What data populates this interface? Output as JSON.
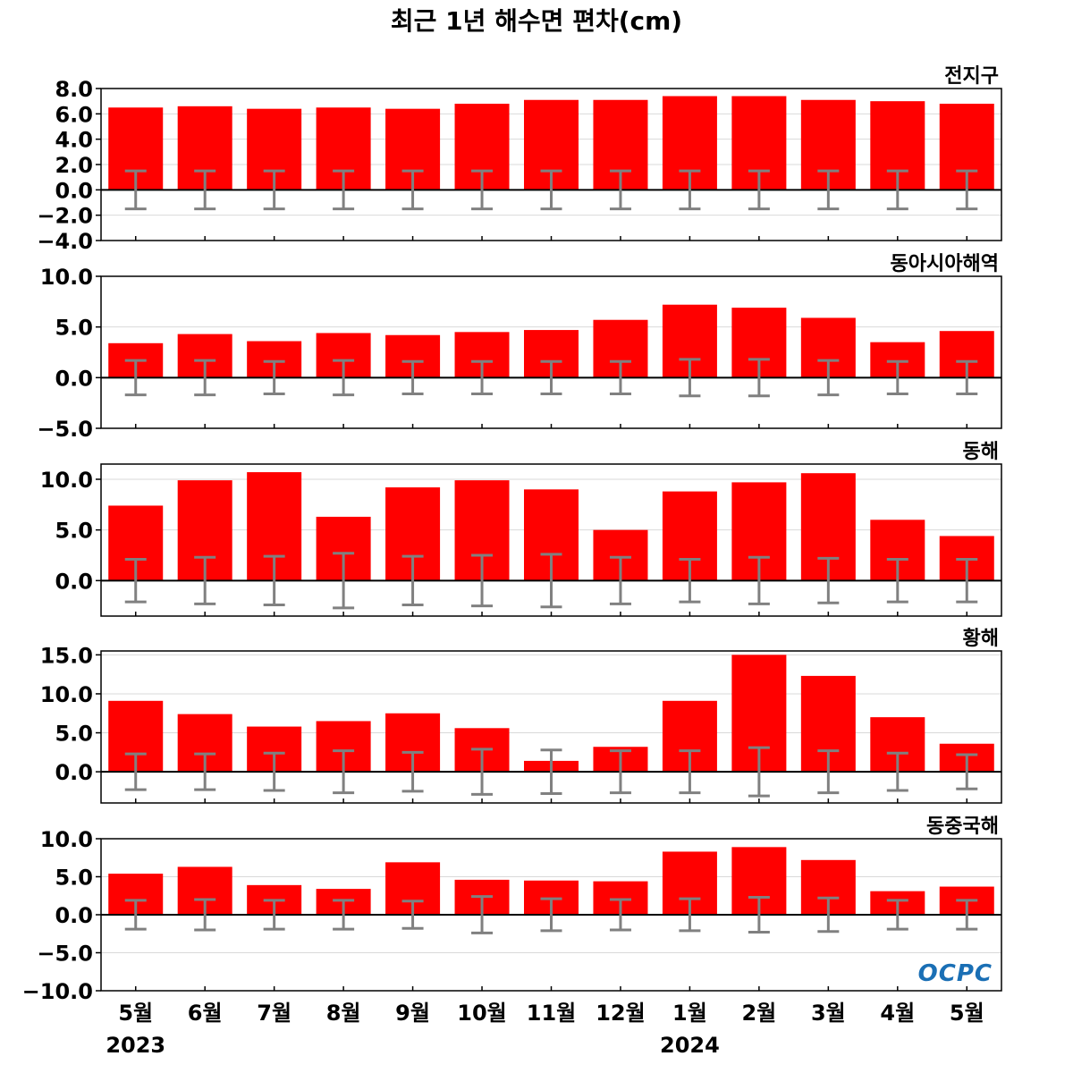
{
  "chart_data": {
    "type": "bar",
    "title": "최근 1년 해수면 편차(cm)",
    "categories": [
      "5월",
      "6월",
      "7월",
      "8월",
      "9월",
      "10월",
      "11월",
      "12월",
      "1월",
      "2월",
      "3월",
      "4월",
      "5월"
    ],
    "years": [
      {
        "label": "2023",
        "category_index": 0
      },
      {
        "label": "2024",
        "category_index": 8
      }
    ],
    "bar_color": "#ff0000",
    "errorbar_color": "#808080",
    "grid": true,
    "legend": "none",
    "logo": "OCPC",
    "panels": [
      {
        "name": "전지구",
        "ylim": [
          -4.0,
          8.0
        ],
        "yticks": [
          -4.0,
          -2.0,
          0.0,
          2.0,
          4.0,
          6.0,
          8.0
        ],
        "tick_labels": [
          "−4.0",
          "−2.0",
          "0.0",
          "2.0",
          "4.0",
          "6.0",
          "8.0"
        ],
        "values": [
          6.5,
          6.6,
          6.4,
          6.5,
          6.4,
          6.8,
          7.1,
          7.1,
          7.4,
          7.4,
          7.1,
          7.0,
          6.8
        ],
        "error": [
          1.5,
          1.5,
          1.5,
          1.5,
          1.5,
          1.5,
          1.5,
          1.5,
          1.5,
          1.5,
          1.5,
          1.5,
          1.5
        ]
      },
      {
        "name": "동아시아해역",
        "ylim": [
          -5.0,
          10.0
        ],
        "yticks": [
          -5.0,
          0.0,
          5.0,
          10.0
        ],
        "tick_labels": [
          "−5.0",
          "0.0",
          "5.0",
          "10.0"
        ],
        "values": [
          3.4,
          4.3,
          3.6,
          4.4,
          4.2,
          4.5,
          4.7,
          5.7,
          7.2,
          6.9,
          5.9,
          3.5,
          4.6
        ],
        "error": [
          1.7,
          1.7,
          1.6,
          1.7,
          1.6,
          1.6,
          1.6,
          1.6,
          1.8,
          1.8,
          1.7,
          1.6,
          1.6
        ]
      },
      {
        "name": "동해",
        "ylim": [
          -3.5,
          11.5
        ],
        "yticks": [
          0.0,
          5.0,
          10.0
        ],
        "tick_labels": [
          "0.0",
          "5.0",
          "10.0"
        ],
        "values": [
          7.4,
          9.9,
          10.7,
          6.3,
          9.2,
          9.9,
          9.0,
          5.0,
          8.8,
          9.7,
          10.6,
          6.0,
          4.4
        ],
        "error": [
          2.1,
          2.3,
          2.4,
          2.7,
          2.4,
          2.5,
          2.6,
          2.3,
          2.1,
          2.3,
          2.2,
          2.1,
          2.1
        ]
      },
      {
        "name": "황해",
        "ylim": [
          -4.0,
          15.5
        ],
        "yticks": [
          0.0,
          5.0,
          10.0,
          15.0
        ],
        "tick_labels": [
          "0.0",
          "5.0",
          "10.0",
          "15.0"
        ],
        "values": [
          9.1,
          7.4,
          5.8,
          6.5,
          7.5,
          5.6,
          1.4,
          3.2,
          9.1,
          15.0,
          12.3,
          7.0,
          3.6
        ],
        "error": [
          2.3,
          2.3,
          2.4,
          2.7,
          2.5,
          2.9,
          2.8,
          2.7,
          2.7,
          3.1,
          2.7,
          2.4,
          2.2
        ]
      },
      {
        "name": "동중국해",
        "ylim": [
          -10.0,
          10.0
        ],
        "yticks": [
          -10.0,
          -5.0,
          0.0,
          5.0,
          10.0
        ],
        "tick_labels": [
          "−10.0",
          "−5.0",
          "0.0",
          "5.0",
          "10.0"
        ],
        "values": [
          5.4,
          6.3,
          3.9,
          3.4,
          6.9,
          4.6,
          4.5,
          4.4,
          8.3,
          8.9,
          7.2,
          3.1,
          3.7
        ],
        "error": [
          1.9,
          2.0,
          1.9,
          1.9,
          1.8,
          2.4,
          2.1,
          2.0,
          2.1,
          2.3,
          2.2,
          1.9,
          1.9
        ]
      }
    ]
  }
}
